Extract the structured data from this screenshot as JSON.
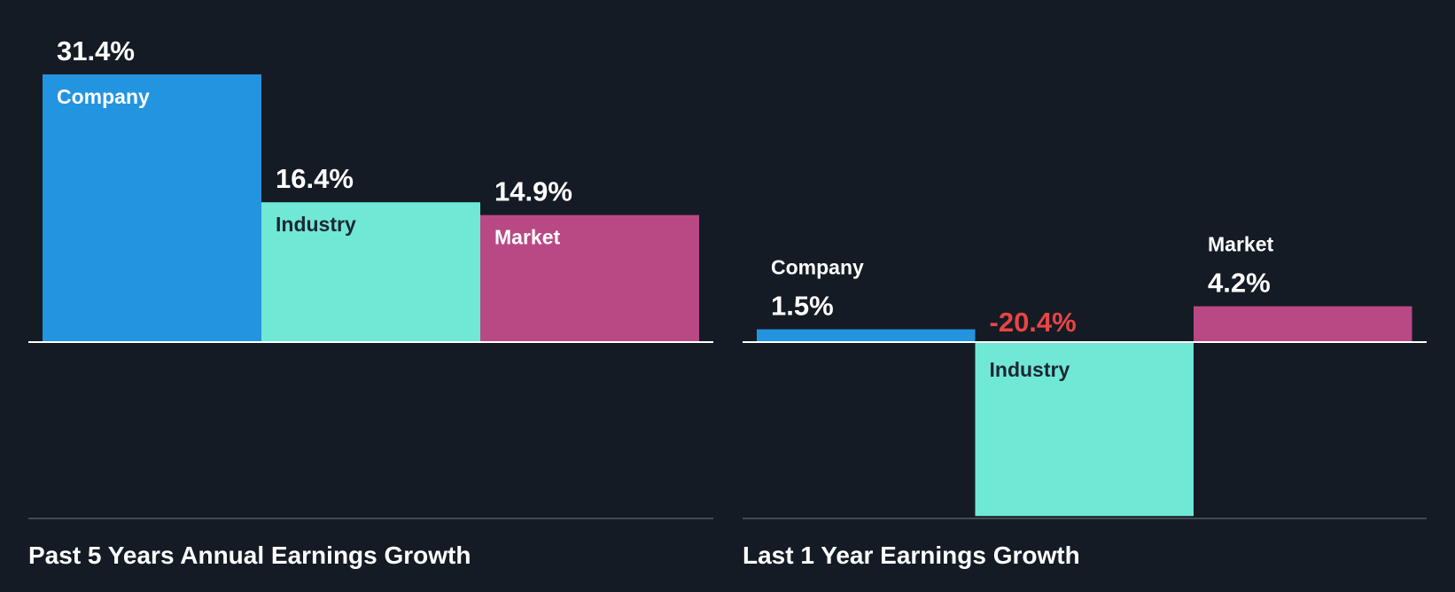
{
  "chart_data": [
    {
      "type": "bar",
      "title": "Past 5 Years Annual Earnings Growth",
      "categories": [
        "Company",
        "Industry",
        "Market"
      ],
      "values": [
        31.4,
        16.4,
        14.9
      ],
      "value_labels": [
        "31.4%",
        "16.4%",
        "14.9%"
      ],
      "colors": [
        "#2394e0",
        "#70e8d6",
        "#b94984"
      ],
      "unit": "%"
    },
    {
      "type": "bar",
      "title": "Last 1 Year Earnings Growth",
      "categories": [
        "Company",
        "Industry",
        "Market"
      ],
      "values": [
        1.5,
        -20.4,
        4.2
      ],
      "value_labels": [
        "1.5%",
        "-20.4%",
        "4.2%"
      ],
      "colors": [
        "#2394e0",
        "#70e8d6",
        "#b94984"
      ],
      "unit": "%"
    }
  ],
  "colors": {
    "background": "#151b24",
    "negative": "#e84545",
    "text": "#ffffff",
    "dark_text": "#1e2633"
  }
}
